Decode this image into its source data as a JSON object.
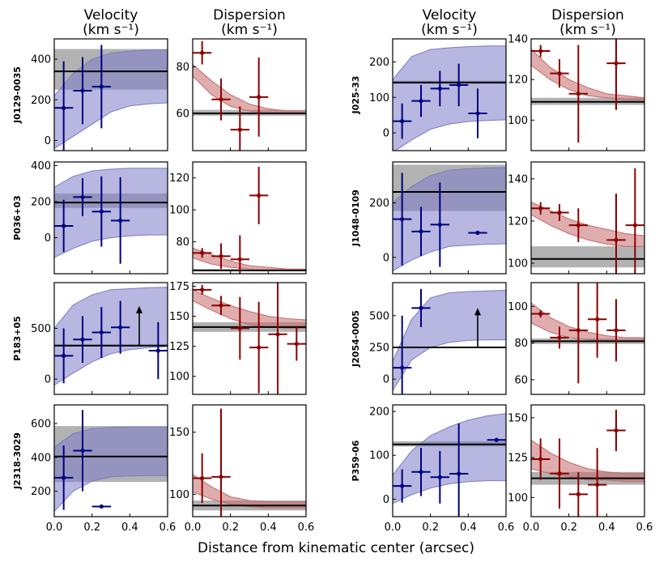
{
  "figure": {
    "xlabel": "Distance from kinematic center (arcsec)",
    "col_titles": [
      {
        "line1": "Velocity",
        "line2": "(km s⁻¹)"
      },
      {
        "line1": "Dispersion",
        "line2": "(km s⁻¹)"
      },
      {
        "line1": "Velocity",
        "line2": "(km s⁻¹)"
      },
      {
        "line1": "Dispersion",
        "line2": "(km s⁻¹)"
      }
    ],
    "x_ticks": [
      "0.0",
      "0.2",
      "0.4",
      "0.6"
    ],
    "colors": {
      "velocity_points": "#000080",
      "dispersion_points": "#8b0000",
      "velocity_band": "#7b7bc8",
      "dispersion_band": "#c46a6a",
      "measured_band": "#7f7f7f",
      "measured_line": "#000000"
    }
  },
  "chart_data": [
    {
      "type": "scatter",
      "object": "J0129-0035",
      "quantity": "Velocity",
      "xlim": [
        0,
        0.6
      ],
      "ylim": [
        -50,
        500
      ],
      "yticks": [
        0,
        200,
        400
      ],
      "x": [
        0.05,
        0.15,
        0.25
      ],
      "y": [
        160,
        245,
        265
      ],
      "yerr": [
        230,
        165,
        205
      ],
      "model_band": {
        "x": [
          0.0,
          0.1,
          0.2,
          0.3,
          0.4,
          0.5,
          0.6
        ],
        "lower": [
          -40,
          20,
          80,
          140,
          170,
          180,
          185
        ],
        "upper": [
          220,
          330,
          400,
          430,
          440,
          445,
          445
        ]
      },
      "measured": {
        "value": 340,
        "lower": 250,
        "upper": 450
      },
      "arrow": null
    },
    {
      "type": "scatter",
      "object": "J0129-0035",
      "quantity": "Dispersion",
      "xlim": [
        0,
        0.6
      ],
      "ylim": [
        44,
        92
      ],
      "yticks": [
        60,
        80
      ],
      "x": [
        0.05,
        0.15,
        0.25,
        0.35
      ],
      "y": [
        86,
        66,
        53,
        67
      ],
      "yerr": [
        5,
        9,
        10,
        17
      ],
      "model_band": {
        "x": [
          0.0,
          0.1,
          0.2,
          0.3,
          0.4,
          0.5,
          0.6
        ],
        "lower": [
          76,
          68,
          63,
          61,
          60,
          60,
          60
        ],
        "upper": [
          81,
          74,
          68,
          64,
          62,
          61,
          61
        ]
      },
      "measured": {
        "value": 60,
        "lower": 59,
        "upper": 61.5
      },
      "arrow": null
    },
    {
      "type": "scatter",
      "object": "J025-33",
      "quantity": "Velocity",
      "xlim": [
        0,
        0.6
      ],
      "ylim": [
        -50,
        265
      ],
      "yticks": [
        0,
        100,
        200
      ],
      "x": [
        0.05,
        0.15,
        0.25,
        0.35,
        0.45
      ],
      "y": [
        33,
        90,
        125,
        135,
        55
      ],
      "yerr": [
        50,
        45,
        50,
        60,
        70
      ],
      "model_band": {
        "x": [
          0.0,
          0.1,
          0.2,
          0.3,
          0.4,
          0.5,
          0.6
        ],
        "lower": [
          -55,
          -20,
          10,
          25,
          32,
          35,
          37
        ],
        "upper": [
          150,
          215,
          235,
          240,
          243,
          245,
          245
        ]
      },
      "measured": {
        "value": 142,
        "lower": 138,
        "upper": 147
      },
      "arrow": null
    },
    {
      "type": "scatter",
      "object": "J025-33",
      "quantity": "Dispersion",
      "xlim": [
        0,
        0.6
      ],
      "ylim": [
        85,
        140
      ],
      "yticks": [
        100,
        120,
        140
      ],
      "x": [
        0.05,
        0.15,
        0.25,
        0.45
      ],
      "y": [
        134,
        123,
        113,
        128
      ],
      "yerr": [
        3,
        7,
        24,
        23
      ],
      "model_band": {
        "x": [
          0.0,
          0.1,
          0.2,
          0.3,
          0.4,
          0.5,
          0.6
        ],
        "lower": [
          127,
          120,
          115,
          112,
          111,
          110,
          110
        ],
        "upper": [
          135,
          126,
          120,
          116,
          113,
          112,
          111
        ]
      },
      "measured": {
        "value": 109,
        "lower": 107.5,
        "upper": 111
      },
      "arrow": null
    },
    {
      "type": "scatter",
      "object": "P036+03",
      "quantity": "Velocity",
      "xlim": [
        0,
        0.6
      ],
      "ylim": [
        -200,
        420
      ],
      "yticks": [
        0,
        200,
        400
      ],
      "x": [
        0.05,
        0.15,
        0.25,
        0.35
      ],
      "y": [
        65,
        225,
        145,
        95
      ],
      "yerr": [
        145,
        105,
        195,
        240
      ],
      "model_band": {
        "x": [
          0.0,
          0.1,
          0.2,
          0.3,
          0.4,
          0.5,
          0.6
        ],
        "lower": [
          -110,
          -60,
          -20,
          0,
          10,
          15,
          15
        ],
        "upper": [
          280,
          340,
          370,
          380,
          385,
          385,
          385
        ]
      },
      "measured": {
        "value": 195,
        "lower": 165,
        "upper": 245
      },
      "arrow": null
    },
    {
      "type": "scatter",
      "object": "P036+03",
      "quantity": "Dispersion",
      "xlim": [
        0,
        0.6
      ],
      "ylim": [
        60,
        130
      ],
      "yticks": [
        80,
        100,
        120
      ],
      "x": [
        0.05,
        0.15,
        0.25,
        0.35
      ],
      "y": [
        73,
        71,
        69,
        109
      ],
      "yerr": [
        3,
        8,
        15,
        18
      ],
      "model_band": {
        "x": [
          0.0,
          0.1,
          0.2,
          0.3,
          0.4,
          0.5,
          0.6
        ],
        "lower": [
          70,
          66,
          64,
          63,
          62,
          62,
          62
        ],
        "upper": [
          76,
          72,
          68,
          65,
          64,
          63,
          63
        ]
      },
      "measured": {
        "value": 62,
        "lower": 61.5,
        "upper": 63
      },
      "arrow": null
    },
    {
      "type": "scatter",
      "object": "J1048-0109",
      "quantity": "Velocity",
      "xlim": [
        0,
        0.6
      ],
      "ylim": [
        -60,
        350
      ],
      "yticks": [
        0,
        200
      ],
      "x": [
        0.05,
        0.15,
        0.25,
        0.45
      ],
      "y": [
        140,
        95,
        120,
        90
      ],
      "yerr": [
        170,
        90,
        155,
        5
      ],
      "model_band": {
        "x": [
          0.0,
          0.1,
          0.2,
          0.3,
          0.4,
          0.5,
          0.6
        ],
        "lower": [
          -50,
          -10,
          20,
          40,
          45,
          48,
          50
        ],
        "upper": [
          200,
          260,
          300,
          320,
          325,
          328,
          330
        ]
      },
      "measured": {
        "value": 240,
        "lower": 170,
        "upper": 340
      },
      "arrow": null
    },
    {
      "type": "scatter",
      "object": "J1048-0109",
      "quantity": "Dispersion",
      "xlim": [
        0,
        0.6
      ],
      "ylim": [
        95,
        148
      ],
      "yticks": [
        100,
        120,
        140
      ],
      "x": [
        0.05,
        0.15,
        0.25,
        0.45,
        0.55
      ],
      "y": [
        126,
        124,
        118,
        111,
        118
      ],
      "yerr": [
        3,
        4,
        8,
        22,
        27
      ],
      "model_band": {
        "x": [
          0.0,
          0.1,
          0.2,
          0.3,
          0.4,
          0.5,
          0.6
        ],
        "lower": [
          123,
          118,
          114,
          111,
          109,
          108,
          108
        ],
        "upper": [
          129,
          125,
          121,
          118,
          116,
          114,
          113
        ]
      },
      "measured": {
        "value": 102,
        "lower": 98,
        "upper": 108
      },
      "arrow": null
    },
    {
      "type": "scatter",
      "object": "P183+05",
      "quantity": "Velocity",
      "xlim": [
        0,
        0.6
      ],
      "ylim": [
        -150,
        950
      ],
      "yticks": [
        0,
        500
      ],
      "x": [
        0.05,
        0.15,
        0.25,
        0.35,
        0.55
      ],
      "y": [
        230,
        390,
        460,
        510,
        280
      ],
      "yerr": [
        270,
        230,
        250,
        260,
        280
      ],
      "model_band": {
        "x": [
          0.0,
          0.1,
          0.2,
          0.3,
          0.4,
          0.5,
          0.6
        ],
        "lower": [
          -60,
          60,
          170,
          250,
          290,
          310,
          320
        ],
        "upper": [
          500,
          730,
          830,
          880,
          890,
          900,
          905
        ]
      },
      "measured": {
        "value": 330,
        "lower": 320,
        "upper": 340
      },
      "arrow": {
        "x": 0.45,
        "from": 330,
        "to": 720
      }
    },
    {
      "type": "scatter",
      "object": "P183+05",
      "quantity": "Dispersion",
      "xlim": [
        0,
        0.6
      ],
      "ylim": [
        85,
        178
      ],
      "yticks": [
        100,
        125,
        150,
        175
      ],
      "x": [
        0.05,
        0.15,
        0.25,
        0.35,
        0.45,
        0.55
      ],
      "y": [
        172,
        159,
        140,
        124,
        135,
        127
      ],
      "yerr": [
        4,
        8,
        26,
        38,
        50,
        14
      ],
      "model_band": {
        "x": [
          0.0,
          0.1,
          0.2,
          0.3,
          0.4,
          0.5,
          0.6
        ],
        "lower": [
          163,
          155,
          148,
          143,
          141,
          140,
          140
        ],
        "upper": [
          172,
          165,
          159,
          154,
          150,
          148,
          147
        ]
      },
      "measured": {
        "value": 141,
        "lower": 137,
        "upper": 145
      },
      "arrow": null
    },
    {
      "type": "scatter",
      "object": "J2054-0005",
      "quantity": "Velocity",
      "xlim": [
        0,
        0.6
      ],
      "ylim": [
        -120,
        760
      ],
      "yticks": [
        0,
        250,
        500
      ],
      "x": [
        0.05,
        0.15
      ],
      "y": [
        90,
        560
      ],
      "yerr": [
        410,
        150
      ],
      "model_band": {
        "x": [
          0.0,
          0.1,
          0.2,
          0.3,
          0.4,
          0.5,
          0.6
        ],
        "lower": [
          -90,
          150,
          250,
          290,
          305,
          310,
          310
        ],
        "upper": [
          140,
          470,
          640,
          680,
          690,
          695,
          700
        ]
      },
      "measured": {
        "value": 250,
        "lower": 246,
        "upper": 254
      },
      "arrow": {
        "x": 0.45,
        "from": 250,
        "to": 560
      }
    },
    {
      "type": "scatter",
      "object": "J2054-0005",
      "quantity": "Dispersion",
      "xlim": [
        0,
        0.6
      ],
      "ylim": [
        52,
        113
      ],
      "yticks": [
        60,
        80,
        100
      ],
      "x": [
        0.05,
        0.15,
        0.25,
        0.35,
        0.45
      ],
      "y": [
        96,
        83,
        87,
        93,
        87
      ],
      "yerr": [
        2,
        6,
        29,
        21,
        17
      ],
      "model_band": {
        "x": [
          0.0,
          0.1,
          0.2,
          0.3,
          0.4,
          0.5,
          0.6
        ],
        "lower": [
          91,
          86,
          83,
          82,
          81,
          81,
          81
        ],
        "upper": [
          102,
          94,
          89,
          86,
          84,
          83,
          83
        ]
      },
      "measured": {
        "value": 81,
        "lower": 79.5,
        "upper": 82.5
      },
      "arrow": null
    },
    {
      "type": "scatter",
      "object": "J2318-3029",
      "quantity": "Velocity",
      "xlim": [
        0,
        0.6
      ],
      "ylim": [
        50,
        710
      ],
      "yticks": [
        200,
        400,
        600
      ],
      "x": [
        0.05,
        0.15,
        0.25
      ],
      "y": [
        280,
        440,
        110
      ],
      "yerr": [
        190,
        240,
        6
      ],
      "model_band": {
        "x": [
          0.0,
          0.1,
          0.2,
          0.3,
          0.4,
          0.5,
          0.6
        ],
        "lower": [
          80,
          200,
          260,
          285,
          290,
          292,
          293
        ],
        "upper": [
          460,
          540,
          570,
          578,
          580,
          580,
          580
        ]
      },
      "measured": {
        "value": 405,
        "lower": 255,
        "upper": 585
      },
      "arrow": null
    },
    {
      "type": "scatter",
      "object": "J2318-3029",
      "quantity": "Dispersion",
      "xlim": [
        0,
        0.6
      ],
      "ylim": [
        82,
        172
      ],
      "yticks": [
        100,
        150
      ],
      "x": [
        0.05,
        0.15
      ],
      "y": [
        113,
        114
      ],
      "yerr": [
        20,
        55
      ],
      "model_band": {
        "x": [
          0.0,
          0.1,
          0.2,
          0.3,
          0.4,
          0.5,
          0.6
        ],
        "lower": [
          102,
          96,
          92,
          90,
          89,
          89,
          89
        ],
        "upper": [
          116,
          106,
          98,
          95,
          94,
          94,
          94
        ]
      },
      "measured": {
        "value": 91,
        "lower": 87,
        "upper": 95
      },
      "arrow": null
    },
    {
      "type": "scatter",
      "object": "P359-06",
      "quantity": "Velocity",
      "xlim": [
        0,
        0.6
      ],
      "ylim": [
        -40,
        215
      ],
      "yticks": [
        0,
        100,
        200
      ],
      "x": [
        0.05,
        0.15,
        0.25,
        0.35,
        0.55
      ],
      "y": [
        30,
        62,
        50,
        58,
        135
      ],
      "yerr": [
        38,
        55,
        60,
        115,
        5
      ],
      "model_band": {
        "x": [
          0.0,
          0.1,
          0.2,
          0.3,
          0.4,
          0.5,
          0.6
        ],
        "lower": [
          -10,
          10,
          25,
          35,
          40,
          42,
          42
        ],
        "upper": [
          55,
          110,
          145,
          165,
          180,
          190,
          195
        ]
      },
      "measured": {
        "value": 125,
        "lower": 120,
        "upper": 132
      },
      "arrow": null
    },
    {
      "type": "scatter",
      "object": "P359-06",
      "quantity": "Dispersion",
      "xlim": [
        0,
        0.6
      ],
      "ylim": [
        88,
        158
      ],
      "yticks": [
        100,
        125,
        150
      ],
      "x": [
        0.05,
        0.15,
        0.25,
        0.35,
        0.45
      ],
      "y": [
        124,
        115,
        102,
        108,
        142
      ],
      "yerr": [
        13,
        22,
        14,
        23,
        13
      ],
      "model_band": {
        "x": [
          0.0,
          0.1,
          0.2,
          0.3,
          0.4,
          0.5,
          0.6
        ],
        "lower": [
          118,
          115,
          113,
          111,
          111,
          110,
          110
        ],
        "upper": [
          136,
          128,
          122,
          118,
          116,
          115,
          115
        ]
      },
      "measured": {
        "value": 112,
        "lower": 108,
        "upper": 116
      },
      "arrow": null
    }
  ]
}
